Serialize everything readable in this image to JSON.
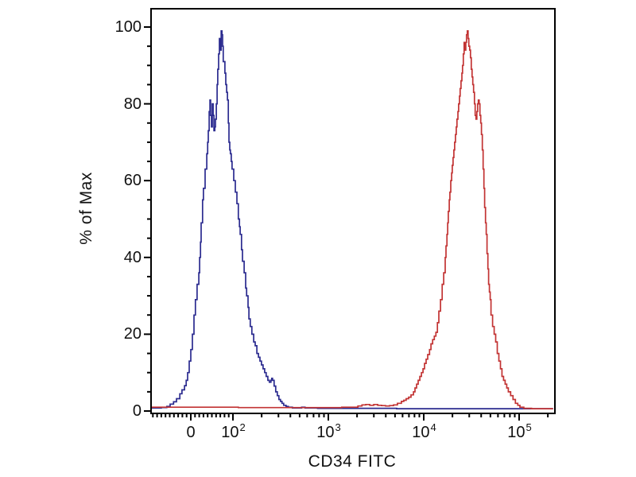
{
  "figure": {
    "background": "#ffffff",
    "frame_color": "#000000",
    "text_color": "#111111"
  },
  "chart_data": {
    "type": "line",
    "subtype": "flow-cytometry-histogram-overlay",
    "title": "",
    "xlabel": "CD34 FITC",
    "ylabel": "% of Max",
    "x_scale": "biexponential",
    "x_axis": {
      "major_ticks": [
        {
          "value": 0,
          "base": "0",
          "exp": ""
        },
        {
          "value": 100,
          "base": "10",
          "exp": "2"
        },
        {
          "value": 1000,
          "base": "10",
          "exp": "3"
        },
        {
          "value": 10000,
          "base": "10",
          "exp": "4"
        },
        {
          "value": 100000,
          "base": "10",
          "exp": "5"
        }
      ],
      "minor_tick_rule": "tens in linear region, 2-9 per decade, 2x10^5",
      "xlim": [
        -94,
        230000
      ]
    },
    "y_axis": {
      "major_ticks": [
        0,
        20,
        40,
        60,
        80,
        100
      ],
      "minor_step": 5,
      "ylim": [
        0,
        100
      ]
    },
    "grid": false,
    "legend": "none",
    "series": [
      {
        "name": "blue-histogram",
        "color": "#2b2b8f",
        "points": [
          [
            -94,
            0.8
          ],
          [
            -70,
            0.9
          ],
          [
            -57,
            1.2
          ],
          [
            -49,
            1.8
          ],
          [
            -41,
            2.4
          ],
          [
            -34,
            3.2
          ],
          [
            -26,
            4.5
          ],
          [
            -21,
            5.5
          ],
          [
            -15,
            6.6
          ],
          [
            -11,
            8
          ],
          [
            -7.5,
            10
          ],
          [
            -3.8,
            13
          ],
          [
            0,
            16
          ],
          [
            3.8,
            20
          ],
          [
            7.5,
            25
          ],
          [
            11,
            29
          ],
          [
            15,
            33
          ],
          [
            19,
            36
          ],
          [
            21,
            40
          ],
          [
            23,
            44
          ],
          [
            24.5,
            49
          ],
          [
            28,
            55
          ],
          [
            30,
            58
          ],
          [
            34,
            63
          ],
          [
            38,
            67
          ],
          [
            40,
            70
          ],
          [
            41.5,
            73
          ],
          [
            43.5,
            78
          ],
          [
            45.5,
            81
          ],
          [
            47,
            77
          ],
          [
            49,
            74
          ],
          [
            51,
            80
          ],
          [
            53,
            77
          ],
          [
            55,
            73
          ],
          [
            57,
            74
          ],
          [
            58.5,
            76
          ],
          [
            60.5,
            80
          ],
          [
            62.5,
            85
          ],
          [
            64,
            89
          ],
          [
            66,
            93
          ],
          [
            68,
            97
          ],
          [
            70,
            94
          ],
          [
            72,
            99
          ],
          [
            74,
            98
          ],
          [
            75.5,
            95
          ],
          [
            77,
            91
          ],
          [
            81,
            88
          ],
          [
            83,
            85
          ],
          [
            85,
            83
          ],
          [
            87,
            81
          ],
          [
            89,
            75
          ],
          [
            90.5,
            70
          ],
          [
            92.5,
            68
          ],
          [
            94,
            67
          ],
          [
            96,
            65
          ],
          [
            98,
            63
          ],
          [
            102,
            60
          ],
          [
            106,
            57
          ],
          [
            110,
            54
          ],
          [
            114,
            50
          ],
          [
            117,
            48
          ],
          [
            119,
            46
          ],
          [
            123,
            42
          ],
          [
            126,
            39
          ],
          [
            131,
            36
          ],
          [
            136,
            32
          ],
          [
            139,
            30
          ],
          [
            144,
            27
          ],
          [
            147,
            24
          ],
          [
            152,
            22
          ],
          [
            158,
            20
          ],
          [
            165,
            18
          ],
          [
            171,
            17
          ],
          [
            178,
            15
          ],
          [
            185,
            14
          ],
          [
            192,
            13
          ],
          [
            199,
            12
          ],
          [
            207,
            11
          ],
          [
            215,
            10
          ],
          [
            223,
            9
          ],
          [
            232,
            8
          ],
          [
            241,
            7.5
          ],
          [
            250,
            8
          ],
          [
            255,
            8.5
          ],
          [
            260,
            8
          ],
          [
            270,
            6.5
          ],
          [
            281,
            5
          ],
          [
            292,
            4
          ],
          [
            303,
            3
          ],
          [
            315,
            2.5
          ],
          [
            327,
            2
          ],
          [
            340,
            1.5
          ],
          [
            360,
            1.2
          ],
          [
            381,
            1
          ],
          [
            420,
            0.8
          ],
          [
            480,
            0.8
          ],
          [
            525,
            1
          ],
          [
            570,
            0.8
          ],
          [
            770,
            0.7
          ],
          [
            2000,
            0.7
          ],
          [
            5200,
            0.6
          ],
          [
            13600,
            0.6
          ],
          [
            35000,
            0.6
          ],
          [
            92000,
            0.6
          ],
          [
            227000,
            0.6
          ]
        ]
      },
      {
        "name": "red-histogram",
        "color": "#c23333",
        "points": [
          [
            -94,
            1
          ],
          [
            0,
            1
          ],
          [
            19,
            1
          ],
          [
            114,
            0.9
          ],
          [
            300,
            0.9
          ],
          [
            780,
            0.9
          ],
          [
            1380,
            1
          ],
          [
            2040,
            1.3
          ],
          [
            2250,
            1.6
          ],
          [
            2470,
            1.7
          ],
          [
            2720,
            1.5
          ],
          [
            2990,
            1.7
          ],
          [
            3290,
            1.5
          ],
          [
            3620,
            1.4
          ],
          [
            3980,
            1.3
          ],
          [
            4380,
            1.4
          ],
          [
            4820,
            1.6
          ],
          [
            5300,
            2
          ],
          [
            5830,
            2.5
          ],
          [
            6180,
            2.8
          ],
          [
            6550,
            3.2
          ],
          [
            6950,
            3.6
          ],
          [
            7360,
            4.2
          ],
          [
            7800,
            5
          ],
          [
            8100,
            6
          ],
          [
            8420,
            7
          ],
          [
            8750,
            8
          ],
          [
            9100,
            9
          ],
          [
            9450,
            10
          ],
          [
            9820,
            11
          ],
          [
            10200,
            12.4
          ],
          [
            10600,
            13.5
          ],
          [
            11000,
            14.7
          ],
          [
            11500,
            16
          ],
          [
            11900,
            17.5
          ],
          [
            12400,
            18.6
          ],
          [
            12900,
            19.5
          ],
          [
            13400,
            20.5
          ],
          [
            13900,
            23
          ],
          [
            14400,
            26
          ],
          [
            15000,
            29
          ],
          [
            15600,
            33
          ],
          [
            16200,
            36
          ],
          [
            16800,
            40
          ],
          [
            17100,
            43
          ],
          [
            17500,
            46
          ],
          [
            17800,
            49
          ],
          [
            18100,
            52
          ],
          [
            18500,
            55
          ],
          [
            18800,
            57
          ],
          [
            19200,
            60
          ],
          [
            19600,
            62
          ],
          [
            19900,
            64
          ],
          [
            20300,
            66
          ],
          [
            20700,
            68
          ],
          [
            21100,
            70
          ],
          [
            21500,
            72
          ],
          [
            21900,
            74
          ],
          [
            22300,
            76
          ],
          [
            22800,
            78
          ],
          [
            23200,
            80
          ],
          [
            23700,
            82
          ],
          [
            24100,
            84
          ],
          [
            24600,
            86
          ],
          [
            25100,
            88
          ],
          [
            25500,
            90
          ],
          [
            26000,
            93
          ],
          [
            26500,
            96
          ],
          [
            27000,
            94
          ],
          [
            27600,
            96
          ],
          [
            28100,
            98
          ],
          [
            28600,
            99
          ],
          [
            29200,
            97
          ],
          [
            29700,
            95
          ],
          [
            30300,
            94
          ],
          [
            30900,
            92
          ],
          [
            31500,
            89
          ],
          [
            32100,
            87
          ],
          [
            32700,
            85
          ],
          [
            33300,
            83
          ],
          [
            34000,
            80
          ],
          [
            34600,
            77
          ],
          [
            35300,
            76
          ],
          [
            36000,
            78
          ],
          [
            36700,
            80
          ],
          [
            37400,
            81
          ],
          [
            38100,
            80
          ],
          [
            38800,
            77
          ],
          [
            39600,
            75
          ],
          [
            40300,
            72
          ],
          [
            41100,
            68
          ],
          [
            41900,
            63
          ],
          [
            42700,
            58
          ],
          [
            43500,
            53
          ],
          [
            44400,
            49
          ],
          [
            45200,
            46
          ],
          [
            46100,
            41
          ],
          [
            47000,
            37
          ],
          [
            47900,
            33
          ],
          [
            48800,
            31
          ],
          [
            49700,
            29
          ],
          [
            50700,
            25
          ],
          [
            52700,
            22
          ],
          [
            54700,
            20
          ],
          [
            56800,
            18
          ],
          [
            59000,
            15
          ],
          [
            61300,
            13
          ],
          [
            63700,
            11
          ],
          [
            66100,
            9
          ],
          [
            68700,
            8
          ],
          [
            71300,
            7
          ],
          [
            74100,
            6
          ],
          [
            77000,
            5
          ],
          [
            81500,
            4
          ],
          [
            86300,
            3
          ],
          [
            91400,
            2
          ],
          [
            96700,
            1.5
          ],
          [
            102000,
            1
          ],
          [
            112000,
            0.7
          ],
          [
            135000,
            0.6
          ],
          [
            163000,
            0.6
          ],
          [
            227000,
            0.6
          ]
        ]
      }
    ]
  }
}
